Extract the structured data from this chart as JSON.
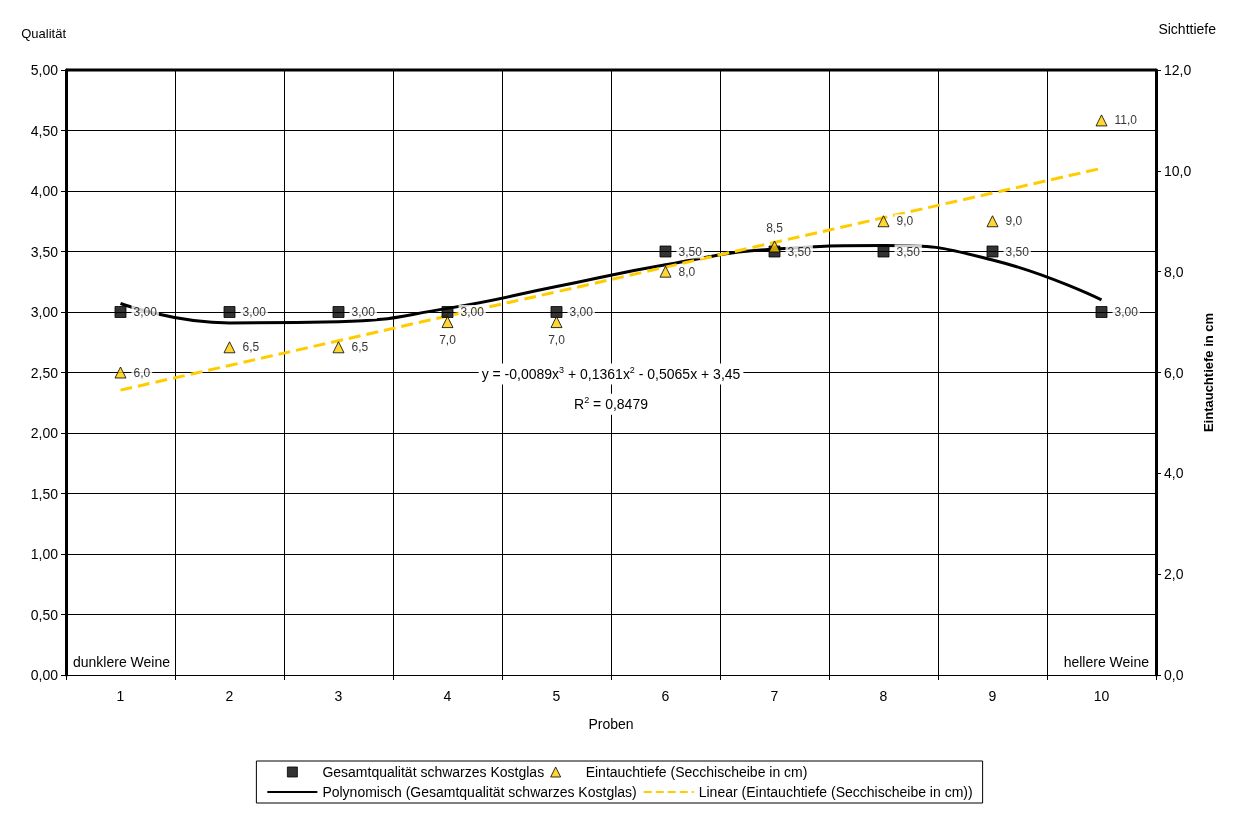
{
  "chart_data": {
    "type": "scatter",
    "ylabel": "Qualität",
    "y2label": "Eintauchtiefe in cm",
    "xlabel": "Proben",
    "categories": [
      "1",
      "2",
      "3",
      "4",
      "5",
      "6",
      "7",
      "8",
      "9",
      "10"
    ],
    "series": [
      {
        "name": "Gesamtqualität schwarzes Kostglas",
        "color": "#000000",
        "marker": "square",
        "values": [
          3,
          3,
          3,
          3,
          3,
          3.5,
          3.5,
          3.5,
          3.5,
          3
        ],
        "value_labels": [
          "3,00",
          "3,00",
          "3,00",
          "3,00",
          "3,00",
          "3,50",
          "3,50",
          "3,50",
          "3,50",
          "3,00"
        ]
      },
      {
        "name": "Eintauchtiefe (Secchischeibe in cm)",
        "axis": "y2",
        "color": "#ffcc00",
        "marker": "triangle",
        "values": [
          6,
          6.5,
          6.5,
          7,
          7,
          8,
          8.5,
          9,
          9,
          11
        ],
        "value_labels": [
          "6,0",
          "6,5",
          "6,5",
          "7,0",
          "7,0",
          "8,0",
          "8,5",
          "9,0",
          "9,0",
          "11,0"
        ]
      },
      {
        "name": "Polynomisch (Gesamtqualität schwarzes Kostglas)",
        "type": "line",
        "color": "#000000",
        "marker": "none",
        "line_style": "solid",
        "values": [
          3.07,
          2.91,
          2.92,
          3.03,
          3.21,
          3.39,
          3.52,
          3.55,
          3.43,
          3.1
        ]
      },
      {
        "name": "Linear (Eintauchtiefe (Secchischeibe in cm))",
        "type": "line",
        "axis": "y2",
        "color": "#ffcc00",
        "marker": "none",
        "line_style": "dashed",
        "values": [
          5.65,
          6.14,
          6.63,
          7.12,
          7.6,
          8.09,
          8.58,
          9.07,
          9.56,
          10.05
        ]
      }
    ],
    "ylim": [
      0,
      5
    ],
    "yticks": [
      {
        "value": 0,
        "label": "0,00"
      },
      {
        "value": 0.5,
        "label": "0,50"
      },
      {
        "value": 1,
        "label": "1,00"
      },
      {
        "value": 1.5,
        "label": "1,50"
      },
      {
        "value": 2,
        "label": "2,00"
      },
      {
        "value": 2.5,
        "label": "2,50"
      },
      {
        "value": 3,
        "label": "3,00"
      },
      {
        "value": 3.5,
        "label": "3,50"
      },
      {
        "value": 4,
        "label": "4,00"
      },
      {
        "value": 4.5,
        "label": "4,50"
      },
      {
        "value": 5,
        "label": "5,00"
      }
    ],
    "y2lim": [
      0,
      12
    ],
    "y2ticks": [
      {
        "value": 0,
        "label": "0,0"
      },
      {
        "value": 2,
        "label": "2,0"
      },
      {
        "value": 4,
        "label": "4,0"
      },
      {
        "value": 6,
        "label": "6,0"
      },
      {
        "value": 8,
        "label": "8,0"
      },
      {
        "value": 10,
        "label": "10,0"
      },
      {
        "value": 12,
        "label": "12,0"
      }
    ],
    "annotations": [
      "y = -0,0089x$^{3}$ + 0,1361x$^{2}$ - 0,5065x + 3,45",
      "R$^{2}$ = 0,8479",
      "dunklere Weine",
      "hellere Weine",
      "Sichttiefe"
    ],
    "grid": true,
    "legend": "bottom"
  }
}
